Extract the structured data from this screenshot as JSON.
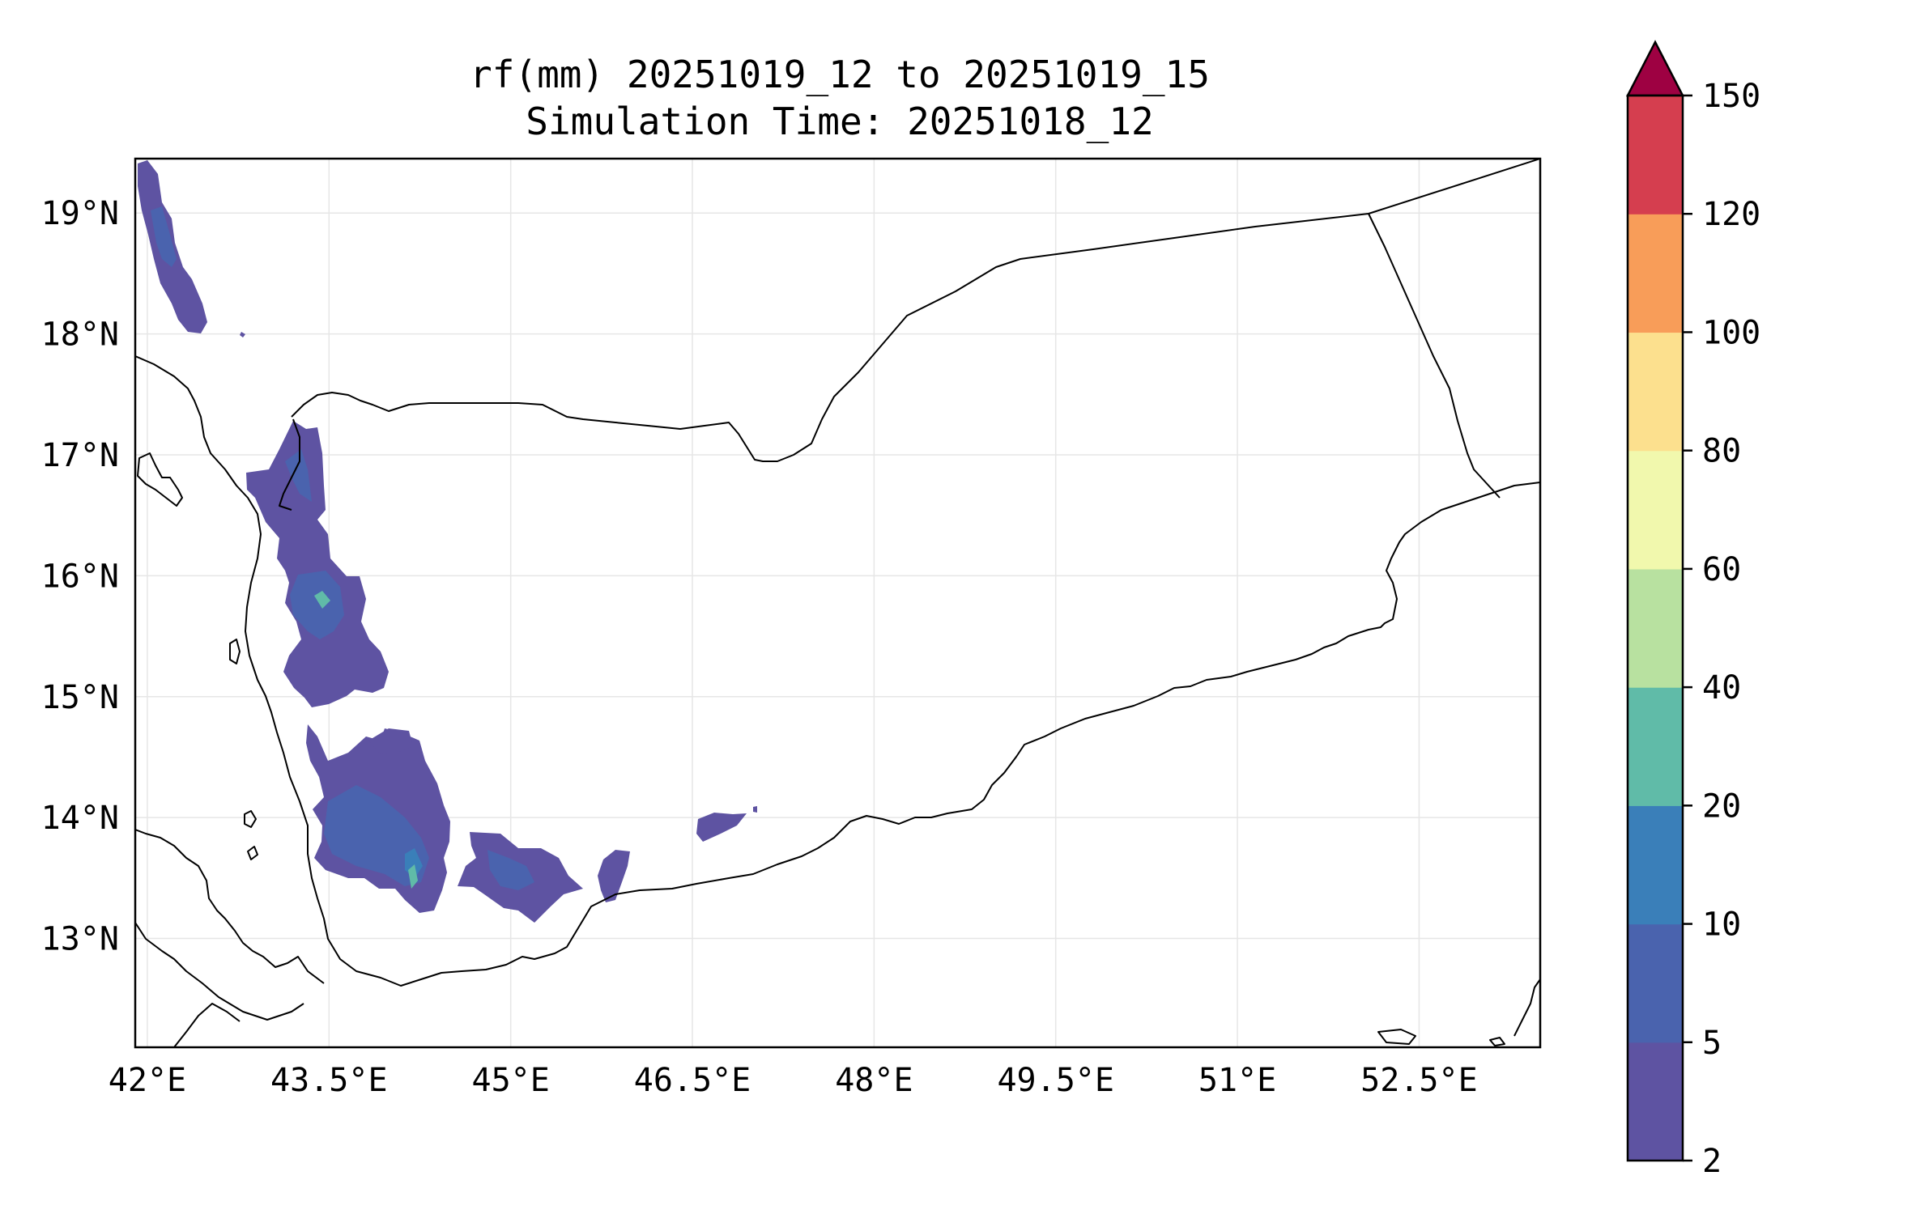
{
  "title": {
    "line1": "rf(mm) 20251019_12 to 20251019_15",
    "line2": "Simulation Time: 20251018_12"
  },
  "map": {
    "lon_range": [
      41.9,
      53.5
    ],
    "lat_range": [
      12.1,
      19.45
    ],
    "gridlines": true,
    "lon_ticks": [
      {
        "value": 42.0,
        "label": "42°E"
      },
      {
        "value": 43.5,
        "label": "43.5°E"
      },
      {
        "value": 45.0,
        "label": "45°E"
      },
      {
        "value": 46.5,
        "label": "46.5°E"
      },
      {
        "value": 48.0,
        "label": "48°E"
      },
      {
        "value": 49.5,
        "label": "49.5°E"
      },
      {
        "value": 51.0,
        "label": "51°E"
      },
      {
        "value": 52.5,
        "label": "52.5°E"
      }
    ],
    "lat_ticks": [
      {
        "value": 19,
        "label": "19°N"
      },
      {
        "value": 18,
        "label": "18°N"
      },
      {
        "value": 17,
        "label": "17°N"
      },
      {
        "value": 16,
        "label": "16°N"
      },
      {
        "value": 15,
        "label": "15°N"
      },
      {
        "value": 14,
        "label": "14°N"
      },
      {
        "value": 13,
        "label": "13°N"
      }
    ]
  },
  "colorbar": {
    "levels": [
      {
        "label": "2",
        "color": "#5e53a2"
      },
      {
        "label": "5",
        "color": "#4a63ae"
      },
      {
        "label": "10",
        "color": "#3a7fb9"
      },
      {
        "label": "20",
        "color": "#60bba8"
      },
      {
        "label": "40",
        "color": "#b8e1a0"
      },
      {
        "label": "60",
        "color": "#f1f8ad"
      },
      {
        "label": "80",
        "color": "#fce08e"
      },
      {
        "label": "100",
        "color": "#f89d59"
      },
      {
        "label": "120",
        "color": "#d53e4f"
      },
      {
        "label": "150",
        "color": ""
      }
    ],
    "extend_color": "#9e0142"
  },
  "rain_colors": {
    "low": "#5e53a2",
    "mid": "#4a63ae",
    "high": "#3a7fb9",
    "peak": "#60bba8"
  }
}
